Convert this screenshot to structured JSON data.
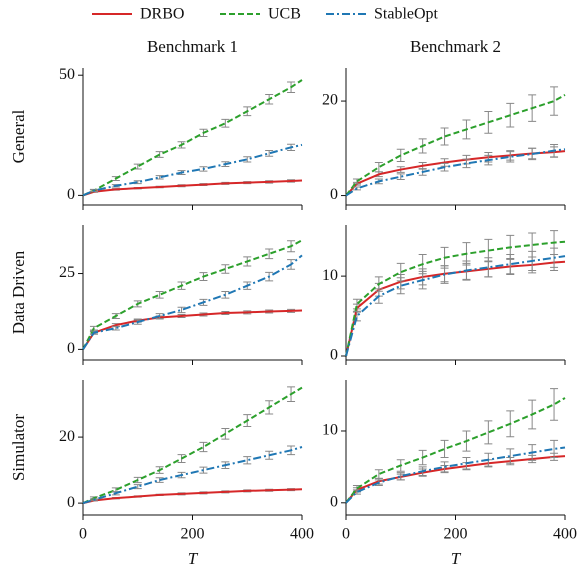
{
  "chart_data": {
    "type": "line",
    "x_label": "T",
    "column_titles": [
      "Benchmark 1",
      "Benchmark 2"
    ],
    "row_labels": [
      "General",
      "Data Driven",
      "Simulator"
    ],
    "legend": [
      {
        "name": "DRBO",
        "color": "#d62728",
        "dash": "solid"
      },
      {
        "name": "UCB",
        "color": "#2ca02c",
        "dash": "dashed"
      },
      {
        "name": "StableOpt",
        "color": "#1f77b4",
        "dash": "dashdot"
      }
    ],
    "x": [
      0,
      20,
      60,
      100,
      140,
      180,
      220,
      260,
      300,
      340,
      380,
      400
    ],
    "xlim": [
      0,
      400
    ],
    "xticks": [
      0,
      200,
      400
    ],
    "panels": [
      {
        "ylim": [
          -4,
          53
        ],
        "yticks": [
          0,
          50
        ],
        "series": [
          {
            "values": [
              0,
              1.5,
              2.5,
              3,
              3.5,
              4,
              4.5,
              5,
              5.3,
              5.6,
              6,
              6.2
            ],
            "errors": [
              null,
              0.2,
              0.3,
              0.3,
              0.3,
              0.4,
              0.4,
              0.4,
              0.4,
              0.5,
              0.5,
              null
            ]
          },
          {
            "values": [
              0,
              2,
              7,
              12,
              17,
              21,
              26,
              30,
              35,
              40,
              45,
              48
            ],
            "errors": [
              null,
              0.5,
              0.8,
              1,
              1.2,
              1.3,
              1.5,
              1.6,
              1.8,
              2,
              2.2,
              null
            ]
          },
          {
            "values": [
              0,
              2,
              4,
              5.5,
              7.5,
              9.5,
              11,
              13,
              15,
              17.5,
              20,
              21
            ],
            "errors": [
              null,
              0.4,
              0.5,
              0.6,
              0.7,
              0.8,
              0.9,
              1,
              1.1,
              1.2,
              1.3,
              null
            ]
          }
        ]
      },
      {
        "ylim": [
          -2,
          27
        ],
        "yticks": [
          0,
          20
        ],
        "series": [
          {
            "values": [
              0,
              2.5,
              4.5,
              5.5,
              6.3,
              7,
              7.6,
              8.1,
              8.5,
              8.9,
              9.2,
              9.4
            ],
            "errors": [
              null,
              0.3,
              0.5,
              0.6,
              0.7,
              0.8,
              0.9,
              1,
              1,
              1.1,
              1.1,
              null
            ]
          },
          {
            "values": [
              0,
              3,
              6,
              8.5,
              10.5,
              12.5,
              14,
              15.5,
              17,
              18.5,
              20,
              21.3
            ],
            "errors": [
              null,
              0.5,
              1,
              1.3,
              1.5,
              1.8,
              2,
              2.3,
              2.5,
              2.8,
              3,
              null
            ]
          },
          {
            "values": [
              0,
              1.5,
              3,
              4,
              5,
              6,
              6.8,
              7.5,
              8.2,
              8.8,
              9.5,
              9.8
            ],
            "errors": [
              null,
              0.3,
              0.5,
              0.6,
              0.7,
              0.8,
              0.9,
              1,
              1.1,
              1.2,
              1.3,
              null
            ]
          }
        ]
      },
      {
        "ylim": [
          -3.5,
          41
        ],
        "yticks": [
          0,
          25
        ],
        "series": [
          {
            "values": [
              0,
              5.5,
              8,
              9.5,
              10.5,
              11,
              11.5,
              12,
              12.2,
              12.5,
              12.7,
              12.8
            ],
            "errors": [
              null,
              0.4,
              0.5,
              0.5,
              0.5,
              0.5,
              0.5,
              0.5,
              0.5,
              0.5,
              0.5,
              null
            ]
          },
          {
            "values": [
              0,
              7,
              11,
              15,
              18,
              21,
              24,
              26.5,
              29,
              31.5,
              34,
              36
            ],
            "errors": [
              null,
              0.6,
              0.8,
              1,
              1.1,
              1.2,
              1.3,
              1.4,
              1.5,
              1.6,
              1.8,
              null
            ]
          },
          {
            "values": [
              0,
              5.5,
              7,
              9,
              11,
              13,
              15.5,
              18,
              21,
              24,
              28,
              31
            ],
            "errors": [
              null,
              0.5,
              0.6,
              0.7,
              0.8,
              0.9,
              1,
              1.1,
              1.2,
              1.4,
              1.6,
              null
            ]
          }
        ]
      },
      {
        "ylim": [
          -0.5,
          16.4
        ],
        "yticks": [
          0,
          10
        ],
        "series": [
          {
            "values": [
              0,
              6,
              8.3,
              9.3,
              9.9,
              10.3,
              10.6,
              10.9,
              11.2,
              11.4,
              11.7,
              11.8
            ],
            "errors": [
              null,
              0.5,
              0.8,
              0.9,
              1,
              1,
              1,
              1,
              1,
              1,
              1,
              null
            ]
          },
          {
            "values": [
              0,
              6.5,
              9,
              10.5,
              11.5,
              12.3,
              12.8,
              13.2,
              13.6,
              13.9,
              14.2,
              14.3
            ],
            "errors": [
              null,
              0.6,
              0.9,
              1.1,
              1.2,
              1.3,
              1.4,
              1.4,
              1.5,
              1.5,
              1.5,
              null
            ]
          },
          {
            "values": [
              0,
              5,
              7.5,
              8.8,
              9.5,
              10.2,
              10.7,
              11.1,
              11.5,
              11.9,
              12.3,
              12.5
            ],
            "errors": [
              null,
              0.6,
              0.9,
              1,
              1.1,
              1.1,
              1.2,
              1.2,
              1.2,
              1.2,
              1.2,
              null
            ]
          }
        ]
      },
      {
        "ylim": [
          -3.6,
          37.3
        ],
        "yticks": [
          0,
          20
        ],
        "series": [
          {
            "values": [
              0,
              0.8,
              1.5,
              2,
              2.5,
              2.8,
              3.1,
              3.4,
              3.7,
              3.9,
              4.1,
              4.2
            ],
            "errors": [
              null,
              0.1,
              0.2,
              0.2,
              0.2,
              0.3,
              0.3,
              0.3,
              0.3,
              0.3,
              0.3,
              null
            ]
          },
          {
            "values": [
              0,
              1.5,
              4,
              7,
              10,
              13.5,
              17,
              21,
              25,
              29,
              33,
              35
            ],
            "errors": [
              null,
              0.4,
              0.6,
              0.8,
              1,
              1.2,
              1.4,
              1.6,
              1.8,
              2,
              2.2,
              null
            ]
          },
          {
            "values": [
              0,
              1,
              3,
              5,
              7,
              8.5,
              10,
              11.5,
              13,
              14.5,
              16,
              17
            ],
            "errors": [
              null,
              0.3,
              0.5,
              0.6,
              0.7,
              0.8,
              0.9,
              1,
              1.1,
              1.2,
              1.3,
              null
            ]
          }
        ]
      },
      {
        "ylim": [
          -1.7,
          17.1
        ],
        "yticks": [
          0,
          10
        ],
        "series": [
          {
            "values": [
              0,
              1.8,
              3,
              3.6,
              4.2,
              4.7,
              5.1,
              5.5,
              5.8,
              6.1,
              6.4,
              6.5
            ],
            "errors": [
              null,
              0.3,
              0.4,
              0.4,
              0.5,
              0.5,
              0.5,
              0.5,
              0.5,
              0.5,
              0.5,
              null
            ]
          },
          {
            "values": [
              0,
              2,
              4,
              5.2,
              6.3,
              7.5,
              8.6,
              9.8,
              11,
              12.3,
              13.7,
              14.6
            ],
            "errors": [
              null,
              0.4,
              0.6,
              0.8,
              1,
              1.2,
              1.4,
              1.6,
              1.8,
              2,
              2.2,
              null
            ]
          },
          {
            "values": [
              0,
              1.5,
              2.8,
              3.7,
              4.4,
              5,
              5.5,
              6,
              6.5,
              7,
              7.5,
              7.7
            ],
            "errors": [
              null,
              0.3,
              0.4,
              0.5,
              0.6,
              0.7,
              0.8,
              0.9,
              1,
              1.1,
              1.2,
              null
            ]
          }
        ]
      }
    ]
  }
}
